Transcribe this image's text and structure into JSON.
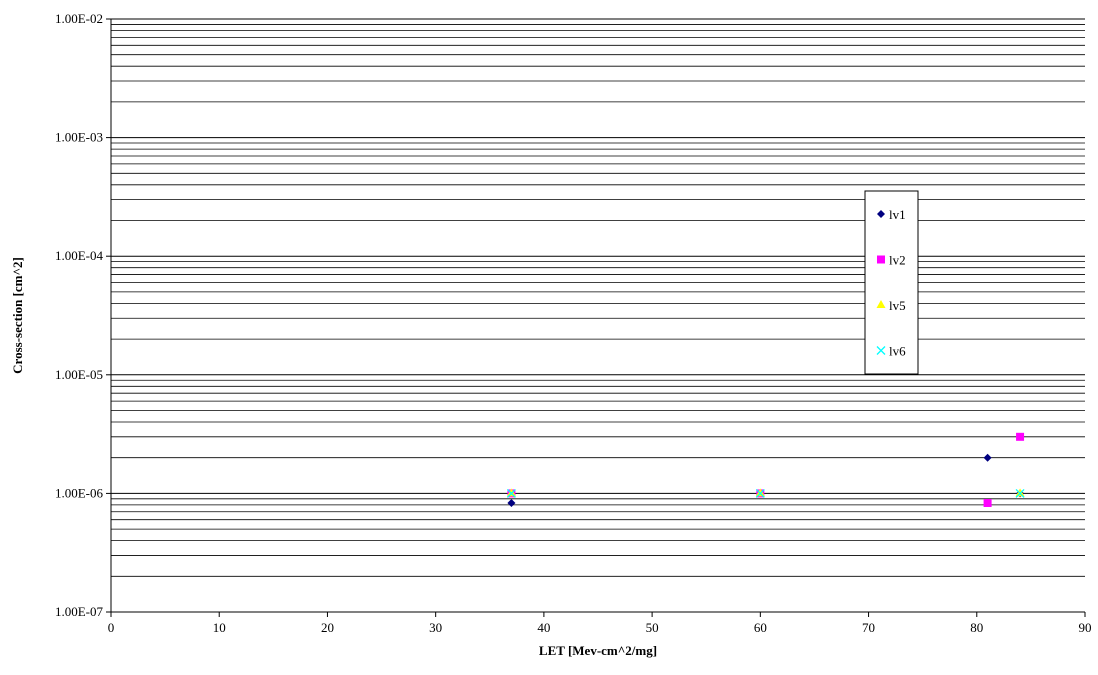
{
  "chart_data": {
    "type": "scatter",
    "title": "",
    "xlabel": "LET  [Mev-cm^2/mg]",
    "ylabel": "Cross-section [cm^2]",
    "xlim": [
      0,
      90
    ],
    "ylim": [
      1e-07,
      0.01
    ],
    "yscale": "log",
    "grid": "horizontal major and minor",
    "legend_position": "right-middle",
    "x_ticks": [
      "0",
      "10",
      "20",
      "30",
      "40",
      "50",
      "60",
      "70",
      "80",
      "90"
    ],
    "x_tick_values": [
      0,
      10,
      20,
      30,
      40,
      50,
      60,
      70,
      80,
      90
    ],
    "y_ticks": [
      "1.00E-07",
      "1.00E-06",
      "1.00E-05",
      "1.00E-04",
      "1.00E-03",
      "1.00E-02"
    ],
    "y_tick_values": [
      1e-07,
      1e-06,
      1e-05,
      0.0001,
      0.001,
      0.01
    ],
    "series": [
      {
        "name": "lv1",
        "marker": "diamond",
        "color": "#000080",
        "points": [
          {
            "x": 37,
            "y": 8.3e-07
          },
          {
            "x": 60,
            "y": 1e-06
          },
          {
            "x": 81,
            "y": 2e-06
          },
          {
            "x": 84,
            "y": 1e-06
          }
        ]
      },
      {
        "name": "lv2",
        "marker": "square",
        "color": "#FF00FF",
        "points": [
          {
            "x": 37,
            "y": 1e-06
          },
          {
            "x": 60,
            "y": 1e-06
          },
          {
            "x": 81,
            "y": 8.3e-07
          },
          {
            "x": 84,
            "y": 3e-06
          }
        ]
      },
      {
        "name": "lv5",
        "marker": "triangle",
        "color": "#FFFF00",
        "points": [
          {
            "x": 37,
            "y": 1e-06
          },
          {
            "x": 60,
            "y": 1e-06
          },
          {
            "x": 84,
            "y": 1e-06
          }
        ]
      },
      {
        "name": "lv6",
        "marker": "x",
        "color": "#00FFFF",
        "points": [
          {
            "x": 37,
            "y": 1e-06
          },
          {
            "x": 60,
            "y": 1e-06
          },
          {
            "x": 84,
            "y": 1e-06
          }
        ]
      }
    ]
  }
}
